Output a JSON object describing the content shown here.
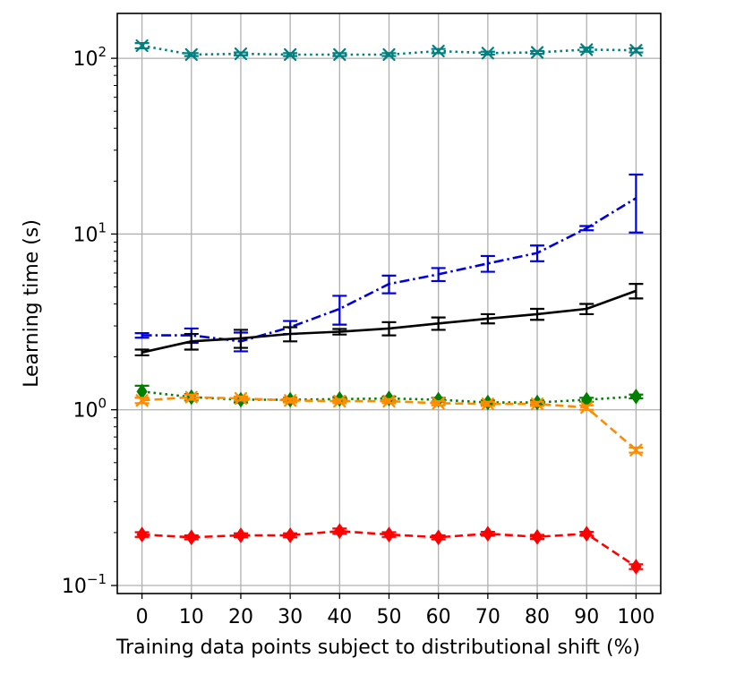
{
  "chart_data": {
    "type": "line",
    "title": "",
    "xlabel": "Training data points subject to distributional shift (%)",
    "ylabel": "Learning time (s)",
    "x": [
      0,
      10,
      20,
      30,
      40,
      50,
      60,
      70,
      80,
      90,
      100
    ],
    "x_ticks": [
      "0",
      "10",
      "20",
      "30",
      "40",
      "50",
      "60",
      "70",
      "80",
      "90",
      "100"
    ],
    "xlim": [
      -5,
      105
    ],
    "y_scale": "log",
    "ylim": [
      0.09,
      180
    ],
    "y_ticks": [
      {
        "base": "10",
        "exp": "−1",
        "value": 0.1
      },
      {
        "base": "10",
        "exp": "0",
        "value": 1
      },
      {
        "base": "10",
        "exp": "1",
        "value": 10
      },
      {
        "base": "10",
        "exp": "2",
        "value": 100
      }
    ],
    "grid": true,
    "legend": "none",
    "series": [
      {
        "color": "#008080",
        "line_style": "dotted",
        "marker": "x",
        "values": [
          118,
          105,
          106,
          105,
          105,
          105,
          110,
          107,
          108,
          112,
          111
        ],
        "errors": [
          4,
          2,
          2,
          2,
          2,
          2,
          3,
          2,
          2,
          3,
          3
        ]
      },
      {
        "color": "#0000dd",
        "line_style": "dashdot",
        "marker": "none",
        "values": [
          2.65,
          2.65,
          2.45,
          2.95,
          3.75,
          5.2,
          5.9,
          6.8,
          7.8,
          10.8,
          16.0
        ],
        "errors": [
          0.08,
          0.25,
          0.3,
          0.25,
          0.7,
          0.6,
          0.5,
          0.7,
          0.8,
          0.3,
          5.8
        ]
      },
      {
        "color": "#000000",
        "line_style": "solid",
        "marker": "none",
        "values": [
          2.12,
          2.45,
          2.55,
          2.7,
          2.78,
          2.9,
          3.1,
          3.3,
          3.5,
          3.75,
          4.75
        ],
        "errors": [
          0.08,
          0.25,
          0.3,
          0.25,
          0.1,
          0.25,
          0.25,
          0.2,
          0.25,
          0.25,
          0.45
        ]
      },
      {
        "color": "#008000",
        "line_style": "dotted",
        "marker": "diamond",
        "values": [
          1.27,
          1.18,
          1.14,
          1.14,
          1.15,
          1.16,
          1.14,
          1.1,
          1.1,
          1.14,
          1.19
        ],
        "errors": [
          0.1,
          0.05,
          0.04,
          0.03,
          0.03,
          0.03,
          0.03,
          0.03,
          0.03,
          0.03,
          0.03
        ]
      },
      {
        "color": "#ff8c00",
        "line_style": "dashed",
        "marker": "x",
        "values": [
          1.13,
          1.18,
          1.16,
          1.13,
          1.12,
          1.12,
          1.09,
          1.08,
          1.08,
          1.03,
          0.59
        ],
        "errors": [
          0.04,
          0.04,
          0.03,
          0.03,
          0.03,
          0.03,
          0.03,
          0.03,
          0.03,
          0.03,
          0.02
        ]
      },
      {
        "color": "#ff0000",
        "line_style": "dashed",
        "marker": "diamond",
        "values": [
          0.195,
          0.188,
          0.193,
          0.193,
          0.204,
          0.195,
          0.188,
          0.197,
          0.189,
          0.197,
          0.128
        ],
        "errors": [
          0.006,
          0.005,
          0.005,
          0.005,
          0.007,
          0.006,
          0.005,
          0.005,
          0.005,
          0.005,
          0.004
        ]
      }
    ]
  }
}
